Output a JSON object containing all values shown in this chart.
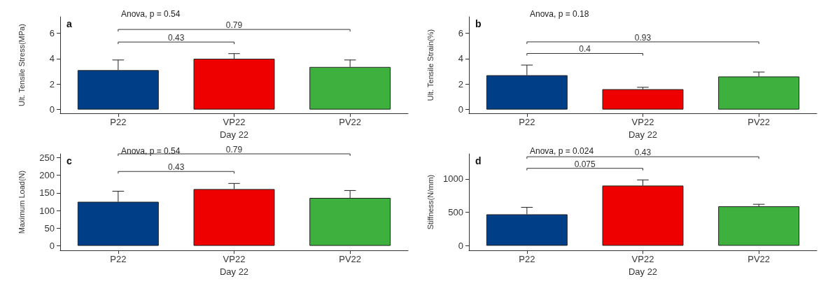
{
  "chart_data": [
    {
      "type": "bar",
      "title": "a",
      "xlabel": "Day 22",
      "ylabel": "Ult. Tensile Stress(MPa)",
      "categories": [
        "P22",
        "VP22",
        "PV22"
      ],
      "values": [
        3.1,
        4.0,
        3.35
      ],
      "errors": [
        0.8,
        0.4,
        0.55
      ],
      "colors": [
        "#003f87",
        "#ee0000",
        "#3db03d"
      ],
      "ylim": [
        -0.3,
        7.3
      ],
      "yticks": [
        0,
        2,
        4,
        6
      ],
      "grid": false,
      "annotations": [
        "Anova, p = 0.54",
        "0.43",
        "0.79"
      ]
    },
    {
      "type": "bar",
      "title": "b",
      "xlabel": "Day 22",
      "ylabel": "Ult. Tensile Strain(%)",
      "categories": [
        "P22",
        "VP22",
        "PV22"
      ],
      "values": [
        2.7,
        1.6,
        2.6
      ],
      "errors": [
        0.8,
        0.15,
        0.35
      ],
      "colors": [
        "#003f87",
        "#ee0000",
        "#3db03d"
      ],
      "ylim": [
        -0.3,
        7.3
      ],
      "yticks": [
        0,
        2,
        4,
        6
      ],
      "grid": false,
      "annotations": [
        "Anova, p = 0.18",
        "0.4",
        "0.93"
      ]
    },
    {
      "type": "bar",
      "title": "c",
      "xlabel": "Day 22",
      "ylabel": "Maximum Load(N)",
      "categories": [
        "P22",
        "VP22",
        "PV22"
      ],
      "values": [
        125,
        161,
        136
      ],
      "errors": [
        30,
        16,
        21
      ],
      "colors": [
        "#003f87",
        "#ee0000",
        "#3db03d"
      ],
      "ylim": [
        -13,
        261
      ],
      "yticks": [
        0,
        50,
        100,
        150,
        200,
        250
      ],
      "grid": false,
      "annotations": [
        "Anova, p = 0.54",
        "0.43",
        "0.79"
      ]
    },
    {
      "type": "bar",
      "title": "d",
      "xlabel": "Day 22",
      "ylabel": "Stiffness(N/mm)",
      "categories": [
        "P22",
        "VP22",
        "PV22"
      ],
      "values": [
        470,
        900,
        590
      ],
      "errors": [
        105,
        85,
        30
      ],
      "colors": [
        "#003f87",
        "#ee0000",
        "#3db03d"
      ],
      "ylim": [
        -70,
        1375
      ],
      "yticks": [
        0,
        500,
        1000
      ],
      "grid": false,
      "annotations": [
        "Anova, p = 0.024",
        "0.075",
        "0.43"
      ]
    }
  ]
}
